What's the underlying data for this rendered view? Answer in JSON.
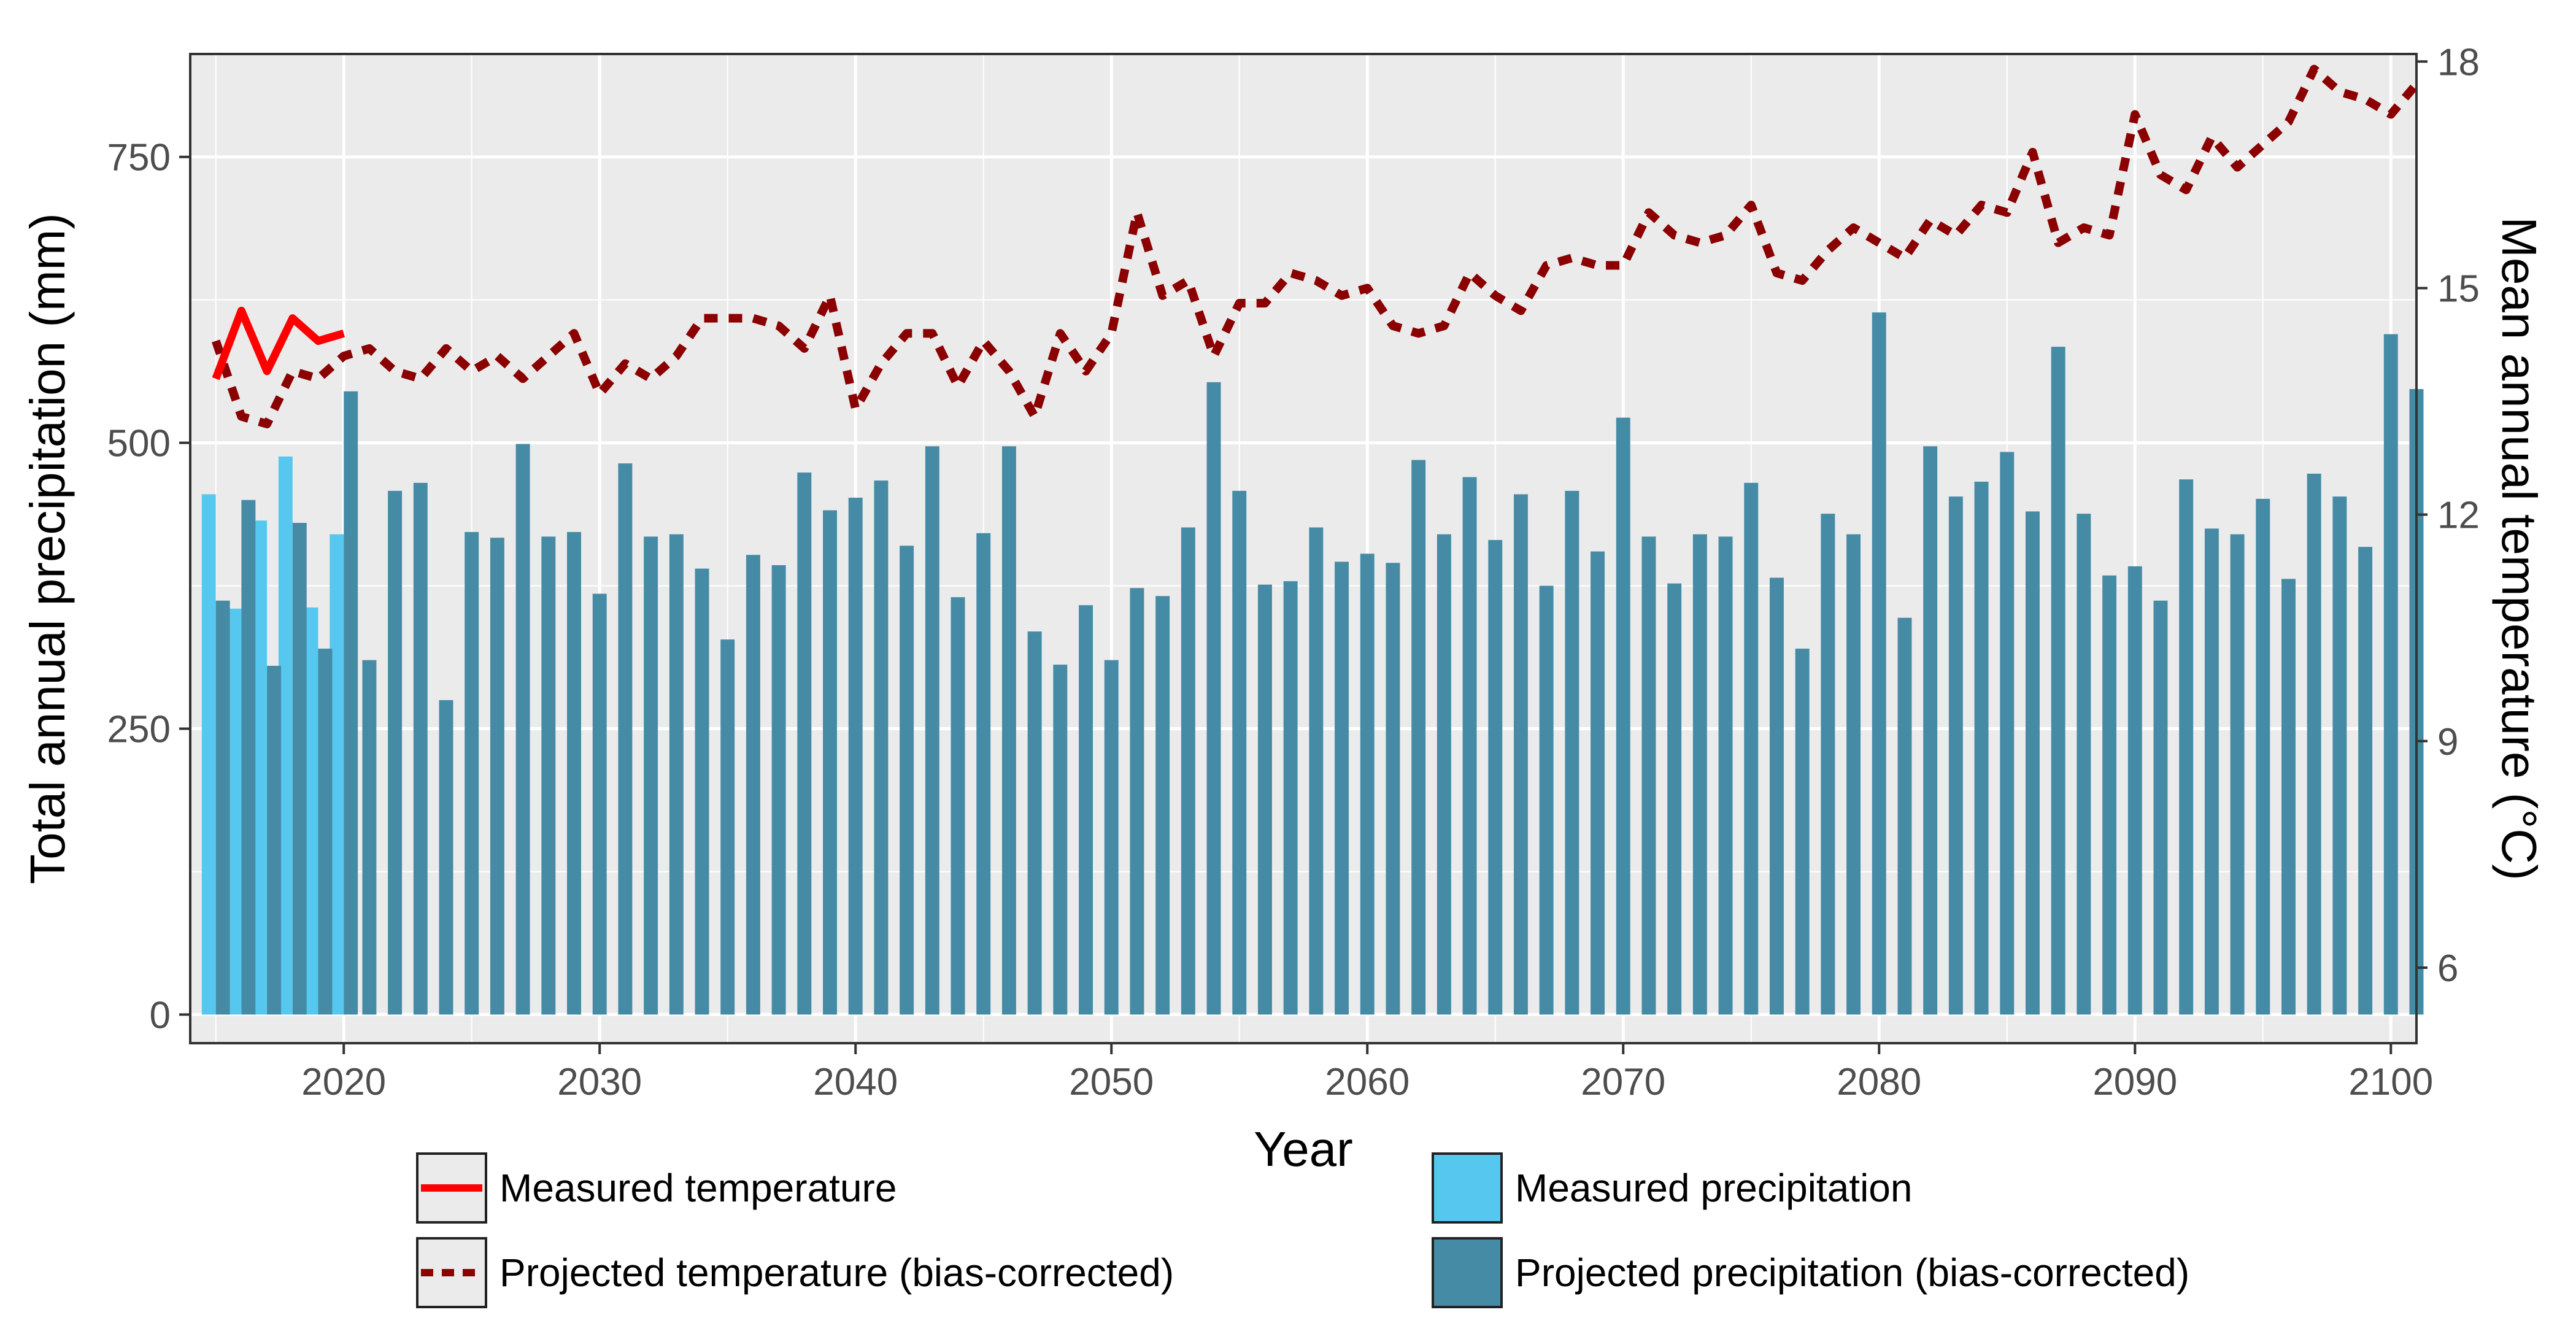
{
  "chart_data": {
    "type": "bar+line",
    "title": "",
    "xlabel": "Year",
    "ylabel_left": "Total annual precipitation (mm)",
    "ylabel_right": "Mean annual temperature (°C)",
    "xlim": [
      2014,
      2101
    ],
    "ylim_left": [
      -25,
      840
    ],
    "ylim_right_equivalent": [
      5,
      18.1
    ],
    "x_ticks": [
      2020,
      2030,
      2040,
      2050,
      2060,
      2070,
      2080,
      2090,
      2100
    ],
    "x_tick_labels": [
      "2020",
      "2030",
      "2040",
      "2050",
      "2060",
      "2070",
      "2080",
      "2090",
      "2100"
    ],
    "y_left_ticks": [
      0,
      250,
      500,
      750
    ],
    "y_left_tick_labels": [
      "0",
      "250",
      "500",
      "750"
    ],
    "y_right_ticks": [
      6,
      9,
      12,
      15,
      18
    ],
    "y_right_tick_labels": [
      "6",
      "9",
      "12",
      "15",
      "18"
    ],
    "grid": true,
    "legend_position": "bottom",
    "legend": {
      "measured_temperature": "Measured temperature",
      "projected_temperature": "Projected temperature (bias-corrected)",
      "measured_precipitation": "Measured precipitation",
      "projected_precipitation": "Projected precipitation (bias-corrected)"
    },
    "colors": {
      "panel_bg": "#ebebeb",
      "grid": "#ffffff",
      "measured_precipitation": "#56c8ef",
      "projected_precipitation": "#468ba6",
      "measured_temperature": "#ff0000",
      "projected_temperature": "#8b0000"
    },
    "series": [
      {
        "name": "Measured precipitation",
        "type": "bar",
        "x": [
          2015,
          2016,
          2017,
          2018,
          2019,
          2020
        ],
        "values": [
          455,
          355,
          432,
          488,
          356,
          420
        ]
      },
      {
        "name": "Projected precipitation (bias-corrected)",
        "type": "bar",
        "x_start": 2015,
        "values": [
          362,
          450,
          305,
          430,
          320,
          545,
          310,
          458,
          465,
          275,
          422,
          417,
          499,
          418,
          422,
          368,
          482,
          418,
          420,
          390,
          328,
          402,
          393,
          474,
          441,
          452,
          467,
          410,
          497,
          365,
          421,
          497,
          335,
          306,
          358,
          310,
          373,
          366,
          426,
          553,
          458,
          376,
          379,
          426,
          396,
          403,
          395,
          485,
          420,
          470,
          415,
          455,
          375,
          458,
          405,
          522,
          418,
          377,
          420,
          418,
          465,
          382,
          320,
          438,
          420,
          614,
          347,
          497,
          453,
          466,
          492,
          440,
          584,
          438,
          384,
          392,
          362,
          468,
          425,
          420,
          451,
          381,
          473,
          453,
          409,
          595,
          547
        ]
      },
      {
        "name": "Measured temperature",
        "type": "line",
        "x": [
          2015,
          2016,
          2017,
          2018,
          2019,
          2020
        ],
        "values": [
          13.8,
          14.7,
          13.9,
          14.6,
          14.3,
          14.4
        ]
      },
      {
        "name": "Projected temperature (bias-corrected)",
        "type": "line",
        "x_start": 2015,
        "values": [
          14.3,
          13.3,
          13.2,
          13.9,
          13.8,
          14.1,
          14.2,
          13.9,
          13.8,
          14.2,
          13.9,
          14.1,
          13.8,
          14.1,
          14.4,
          13.6,
          14.0,
          13.8,
          14.1,
          14.6,
          14.6,
          14.6,
          14.5,
          14.2,
          14.9,
          13.4,
          14.0,
          14.4,
          14.4,
          13.7,
          14.3,
          13.9,
          13.3,
          14.4,
          13.9,
          14.4,
          16.0,
          14.9,
          15.1,
          14.1,
          14.8,
          14.8,
          15.2,
          15.1,
          14.9,
          15.0,
          14.5,
          14.4,
          14.5,
          15.2,
          14.9,
          14.7,
          15.3,
          15.4,
          15.3,
          15.3,
          16.0,
          15.7,
          15.6,
          15.7,
          16.1,
          15.2,
          15.1,
          15.5,
          15.8,
          15.6,
          15.4,
          15.9,
          15.7,
          16.1,
          16.0,
          16.8,
          15.6,
          15.8,
          15.7,
          17.3,
          16.5,
          16.3,
          17.0,
          16.6,
          16.9,
          17.2,
          17.9,
          17.6,
          17.5,
          17.3,
          17.7
        ]
      }
    ]
  }
}
